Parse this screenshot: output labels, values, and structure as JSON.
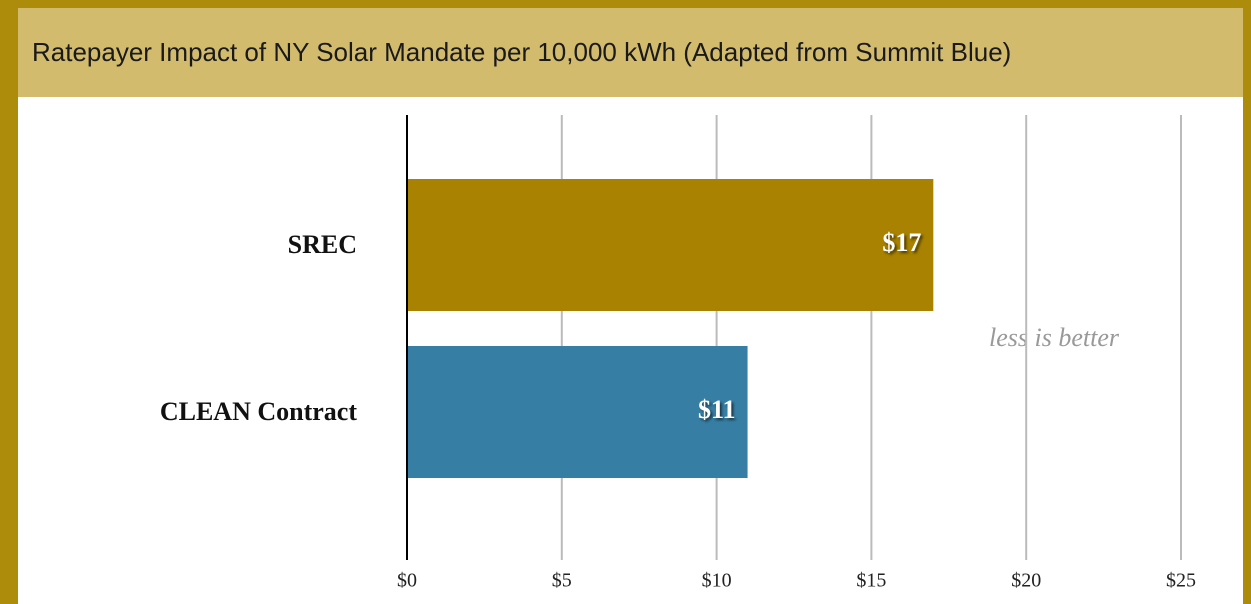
{
  "chart_data": {
    "type": "barh",
    "title": "Ratepayer Impact of NY Solar Mandate per 10,000 kWh (Adapted from Summit Blue)",
    "categories": [
      "SREC",
      "CLEAN Contract"
    ],
    "values": [
      17,
      11
    ],
    "value_labels": [
      "$17",
      "$11"
    ],
    "colors": [
      "#a88200",
      "#367ea3"
    ],
    "xlim": [
      0,
      25
    ],
    "xticks": [
      {
        "value": 0,
        "label": "$0"
      },
      {
        "value": 5,
        "label": "$5"
      },
      {
        "value": 10,
        "label": "$10"
      },
      {
        "value": 15,
        "label": "$15"
      },
      {
        "value": 20,
        "label": "$20"
      },
      {
        "value": 25,
        "label": "$25"
      }
    ],
    "grid": true,
    "annotation": "less is better"
  }
}
